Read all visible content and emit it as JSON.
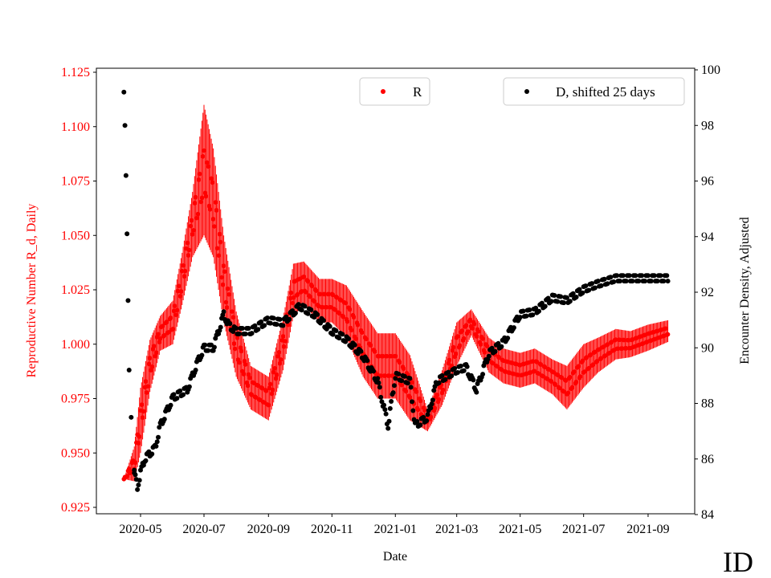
{
  "chart_data": {
    "type": "scatter",
    "xlabel": "Date",
    "ylabel_left": "Reproductive Number R_d, Daily",
    "ylabel_right": "Encounter Density, Adjusted",
    "x_ticks": [
      "2020-05",
      "2020-07",
      "2020-09",
      "2020-11",
      "2021-01",
      "2021-03",
      "2021-05",
      "2021-07",
      "2021-09"
    ],
    "y_left_ticks": [
      "0.925",
      "0.950",
      "0.975",
      "1.000",
      "1.025",
      "1.050",
      "1.075",
      "1.100",
      "1.125"
    ],
    "y_right_ticks": [
      "84",
      "86",
      "88",
      "90",
      "92",
      "94",
      "96",
      "98",
      "100"
    ],
    "y_left_range": [
      0.922,
      1.128
    ],
    "y_right_range": [
      84,
      100
    ],
    "legend": [
      {
        "label": "R",
        "position": "top-center"
      },
      {
        "label": "D, shifted 25 days",
        "position": "top-right"
      }
    ],
    "colors": {
      "R": "#ff0000",
      "D": "#000000"
    },
    "watermark": "ID",
    "series": [
      {
        "name": "R",
        "axis": "left",
        "points": [
          [
            "2020-04-15",
            0.938,
            0.0
          ],
          [
            "2020-04-25",
            0.945,
            0.008
          ],
          [
            "2020-05-01",
            0.965,
            0.015
          ],
          [
            "2020-05-10",
            0.99,
            0.012
          ],
          [
            "2020-05-20",
            1.005,
            0.008
          ],
          [
            "2020-06-01",
            1.01,
            0.01
          ],
          [
            "2020-06-10",
            1.03,
            0.012
          ],
          [
            "2020-06-20",
            1.055,
            0.015
          ],
          [
            "2020-07-01",
            1.08,
            0.03
          ],
          [
            "2020-07-10",
            1.065,
            0.025
          ],
          [
            "2020-07-20",
            1.03,
            0.02
          ],
          [
            "2020-08-01",
            1.0,
            0.015
          ],
          [
            "2020-08-15",
            0.98,
            0.01
          ],
          [
            "2020-09-01",
            0.975,
            0.01
          ],
          [
            "2020-09-15",
            1.0,
            0.012
          ],
          [
            "2020-09-25",
            1.025,
            0.012
          ],
          [
            "2020-10-05",
            1.028,
            0.01
          ],
          [
            "2020-10-20",
            1.02,
            0.01
          ],
          [
            "2020-11-01",
            1.02,
            0.01
          ],
          [
            "2020-11-15",
            1.015,
            0.012
          ],
          [
            "2020-12-01",
            1.0,
            0.015
          ],
          [
            "2020-12-15",
            0.99,
            0.015
          ],
          [
            "2021-01-01",
            0.99,
            0.015
          ],
          [
            "2021-01-15",
            0.98,
            0.015
          ],
          [
            "2021-02-01",
            0.965,
            0.005
          ],
          [
            "2021-02-15",
            0.98,
            0.008
          ],
          [
            "2021-03-01",
            1.0,
            0.01
          ],
          [
            "2021-03-15",
            1.01,
            0.006
          ],
          [
            "2021-04-01",
            0.995,
            0.008
          ],
          [
            "2021-04-15",
            0.99,
            0.008
          ],
          [
            "2021-05-01",
            0.988,
            0.008
          ],
          [
            "2021-05-15",
            0.99,
            0.008
          ],
          [
            "2021-06-01",
            0.985,
            0.008
          ],
          [
            "2021-06-15",
            0.98,
            0.01
          ],
          [
            "2021-07-01",
            0.99,
            0.01
          ],
          [
            "2021-07-15",
            0.995,
            0.008
          ],
          [
            "2021-08-01",
            1.0,
            0.007
          ],
          [
            "2021-08-15",
            1.0,
            0.006
          ],
          [
            "2021-09-01",
            1.003,
            0.006
          ],
          [
            "2021-09-20",
            1.006,
            0.005
          ]
        ]
      },
      {
        "name": "D, shifted 25 days",
        "axis": "right",
        "points": [
          [
            "2020-04-15",
            99.2
          ],
          [
            "2020-04-16",
            98.0
          ],
          [
            "2020-04-17",
            96.2
          ],
          [
            "2020-04-18",
            94.1
          ],
          [
            "2020-04-19",
            91.7
          ],
          [
            "2020-04-20",
            89.2
          ],
          [
            "2020-04-22",
            87.5
          ],
          [
            "2020-04-25",
            85.5
          ],
          [
            "2020-04-28",
            85.0
          ],
          [
            "2020-05-01",
            85.5
          ],
          [
            "2020-05-05",
            86.0
          ],
          [
            "2020-05-15",
            86.4
          ],
          [
            "2020-05-20",
            87.2
          ],
          [
            "2020-06-01",
            88.2
          ],
          [
            "2020-06-15",
            88.5
          ],
          [
            "2020-06-25",
            89.5
          ],
          [
            "2020-07-01",
            90.0
          ],
          [
            "2020-07-10",
            90.0
          ],
          [
            "2020-07-20",
            91.2
          ],
          [
            "2020-07-25",
            90.8
          ],
          [
            "2020-08-01",
            90.6
          ],
          [
            "2020-08-15",
            90.6
          ],
          [
            "2020-09-01",
            91.0
          ],
          [
            "2020-09-15",
            90.9
          ],
          [
            "2020-10-01",
            91.5
          ],
          [
            "2020-10-15",
            91.2
          ],
          [
            "2020-11-01",
            90.6
          ],
          [
            "2020-11-15",
            90.3
          ],
          [
            "2020-12-01",
            89.7
          ],
          [
            "2020-12-15",
            88.8
          ],
          [
            "2020-12-25",
            87.2
          ],
          [
            "2021-01-01",
            89.0
          ],
          [
            "2021-01-15",
            88.8
          ],
          [
            "2021-01-20",
            87.2
          ],
          [
            "2021-02-01",
            87.5
          ],
          [
            "2021-02-10",
            88.8
          ],
          [
            "2021-02-20",
            89.0
          ],
          [
            "2021-03-01",
            89.2
          ],
          [
            "2021-03-10",
            89.3
          ],
          [
            "2021-03-20",
            88.5
          ],
          [
            "2021-04-01",
            89.8
          ],
          [
            "2021-04-15",
            90.2
          ],
          [
            "2021-05-01",
            91.2
          ],
          [
            "2021-05-15",
            91.3
          ],
          [
            "2021-06-01",
            91.8
          ],
          [
            "2021-06-15",
            91.7
          ],
          [
            "2021-07-01",
            92.1
          ],
          [
            "2021-07-15",
            92.3
          ],
          [
            "2021-08-01",
            92.5
          ],
          [
            "2021-09-20",
            92.5
          ]
        ]
      }
    ]
  }
}
